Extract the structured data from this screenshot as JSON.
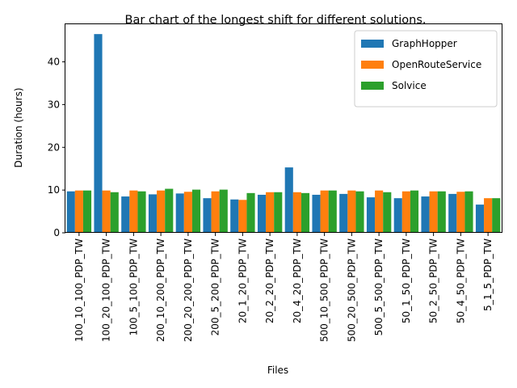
{
  "chart_data": {
    "type": "bar",
    "title": "Bar chart of the longest shift for different solutions.",
    "xlabel": "Files",
    "ylabel": "Duration (hours)",
    "ylim": [
      0,
      48.8
    ],
    "yticks": [
      "0",
      "10",
      "20",
      "30",
      "40"
    ],
    "grid": false,
    "legend_position": "top-right",
    "categories": [
      "100_10_100_PDP_TW",
      "100_20_100_PDP_TW",
      "100_5_100_PDP_TW",
      "200_10_200_PDP_TW",
      "200_20_200_PDP_TW",
      "200_5_200_PDP_TW",
      "20_1_20_PDP_TW",
      "20_2_20_PDP_TW",
      "20_4_20_PDP_TW",
      "500_10_500_PDP_TW",
      "500_20_500_PDP_TW",
      "500_5_500_PDP_TW",
      "50_1_50_PDP_TW",
      "50_2_50_PDP_TW",
      "50_4_50_PDP_TW",
      "5_1_5_PDP_TW"
    ],
    "series": [
      {
        "name": "GraphHopper",
        "color": "#1f77b4",
        "values": [
          9.7,
          46.5,
          8.5,
          9.0,
          9.2,
          8.1,
          7.8,
          8.9,
          15.3,
          8.9,
          9.1,
          8.3,
          8.1,
          8.5,
          9.1,
          6.6
        ]
      },
      {
        "name": "OpenRouteService",
        "color": "#ff7f0e",
        "values": [
          9.9,
          9.9,
          9.9,
          9.9,
          9.6,
          9.7,
          7.7,
          9.5,
          9.5,
          9.9,
          9.9,
          9.9,
          9.7,
          9.7,
          9.6,
          8.1
        ]
      },
      {
        "name": "Solvice",
        "color": "#2ca02c",
        "values": [
          9.9,
          9.5,
          9.7,
          10.3,
          10.1,
          10.1,
          9.3,
          9.5,
          9.3,
          9.9,
          9.7,
          9.5,
          9.9,
          9.7,
          9.7,
          8.1
        ]
      }
    ]
  }
}
